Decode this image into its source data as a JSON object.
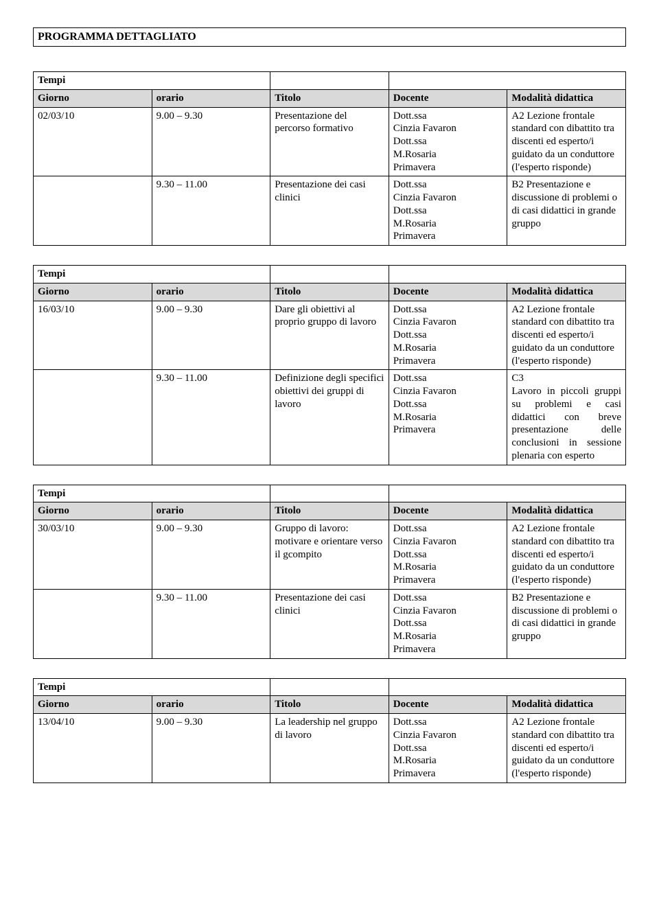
{
  "page_title": "PROGRAMMA DETTAGLIATO",
  "tempi_label": "Tempi",
  "headers": {
    "giorno": "Giorno",
    "orario": "orario",
    "titolo": "Titolo",
    "docente": "Docente",
    "modalita": "Modalità didattica"
  },
  "docente_text": "Dott.ssa\nCinzia Favaron\nDott.ssa\nM.Rosaria\nPrimavera",
  "tables": [
    {
      "rows": [
        {
          "giorno": "02/03/10",
          "orario": "9.00 – 9.30",
          "titolo": "Presentazione del percorso formativo",
          "modalita": "A2  Lezione frontale standard con dibattito tra discenti ed esperto/i guidato da un  conduttore (l'esperto risponde)"
        },
        {
          "giorno": "",
          "orario": "9.30 – 11.00",
          "titolo": "Presentazione dei casi clinici",
          "modalita": "B2  Presentazione e discussione di problemi o di casi didattici in grande gruppo"
        }
      ]
    },
    {
      "rows": [
        {
          "giorno": "16/03/10",
          "orario": "9.00 – 9.30",
          "titolo": "Dare gli obiettivi al proprio gruppo di lavoro",
          "modalita": "A2  Lezione frontale standard con dibattito tra discenti ed esperto/i guidato da un  conduttore (l'esperto risponde)"
        },
        {
          "giorno": "",
          "orario": "9.30 – 11.00",
          "titolo": "Definizione degli specifici obiettivi dei gruppi di lavoro",
          "modalita": "C3\nLavoro in piccoli gruppi su problemi e casi didattici con breve presentazione delle conclusioni in sessione plenaria con esperto",
          "justify": true
        }
      ]
    },
    {
      "rows": [
        {
          "giorno": "30/03/10",
          "orario": "9.00 – 9.30",
          "titolo": "Gruppo di lavoro: motivare e orientare verso il gcompito",
          "modalita": "A2  Lezione frontale standard con dibattito tra discenti ed esperto/i guidato da un  conduttore (l'esperto risponde)"
        },
        {
          "giorno": "",
          "orario": "9.30 – 11.00",
          "titolo": "Presentazione dei casi clinici",
          "modalita": "B2  Presentazione e discussione di problemi o di casi didattici in grande gruppo"
        }
      ]
    },
    {
      "rows": [
        {
          "giorno": "13/04/10",
          "orario": "9.00 – 9.30",
          "titolo": "La leadership  nel gruppo di lavoro",
          "modalita": "A2  Lezione frontale standard con dibattito tra discenti ed esperto/i guidato da un  conduttore (l'esperto risponde)"
        }
      ]
    }
  ]
}
